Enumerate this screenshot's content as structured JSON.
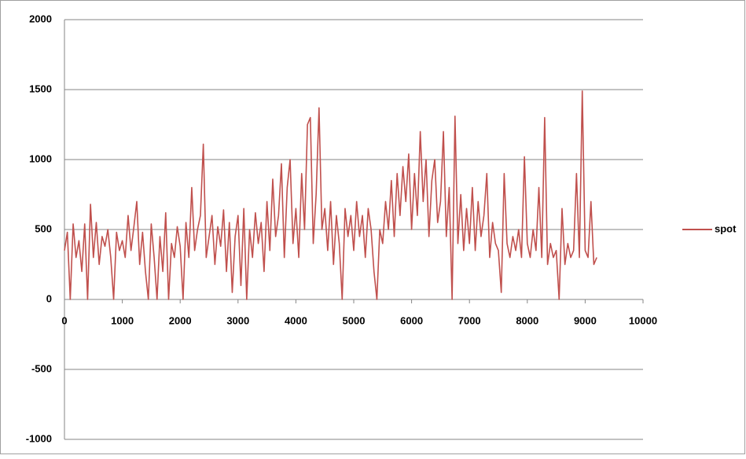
{
  "chart_data": {
    "type": "line",
    "x": [
      0,
      50,
      100,
      150,
      200,
      250,
      300,
      350,
      400,
      450,
      500,
      550,
      600,
      650,
      700,
      750,
      800,
      850,
      900,
      950,
      1000,
      1050,
      1100,
      1150,
      1200,
      1250,
      1300,
      1350,
      1400,
      1450,
      1500,
      1550,
      1600,
      1650,
      1700,
      1750,
      1800,
      1850,
      1900,
      1950,
      2000,
      2050,
      2100,
      2150,
      2200,
      2250,
      2300,
      2350,
      2400,
      2450,
      2500,
      2550,
      2600,
      2650,
      2700,
      2750,
      2800,
      2850,
      2900,
      2950,
      3000,
      3050,
      3100,
      3150,
      3200,
      3250,
      3300,
      3350,
      3400,
      3450,
      3500,
      3550,
      3600,
      3650,
      3700,
      3750,
      3800,
      3850,
      3900,
      3950,
      4000,
      4050,
      4100,
      4150,
      4200,
      4250,
      4300,
      4350,
      4400,
      4450,
      4500,
      4550,
      4600,
      4650,
      4700,
      4750,
      4800,
      4850,
      4900,
      4950,
      5000,
      5050,
      5100,
      5150,
      5200,
      5250,
      5300,
      5350,
      5400,
      5450,
      5500,
      5550,
      5600,
      5650,
      5700,
      5750,
      5800,
      5850,
      5900,
      5950,
      6000,
      6050,
      6100,
      6150,
      6200,
      6250,
      6300,
      6350,
      6400,
      6450,
      6500,
      6550,
      6600,
      6650,
      6700,
      6750,
      6800,
      6850,
      6900,
      6950,
      7000,
      7050,
      7100,
      7150,
      7200,
      7250,
      7300,
      7350,
      7400,
      7450,
      7500,
      7550,
      7600,
      7650,
      7700,
      7750,
      7800,
      7850,
      7900,
      7950,
      8000,
      8050,
      8100,
      8150,
      8200,
      8250,
      8300,
      8350,
      8400,
      8450,
      8500,
      8550,
      8600,
      8650,
      8700,
      8750,
      8800,
      8850,
      8900,
      8950,
      9000,
      9050,
      9100,
      9150,
      9200
    ],
    "series": [
      {
        "name": "spot",
        "color": "#c0504d",
        "values": [
          350,
          480,
          0,
          540,
          300,
          420,
          200,
          540,
          0,
          680,
          300,
          550,
          250,
          450,
          380,
          500,
          300,
          0,
          480,
          350,
          420,
          300,
          600,
          350,
          520,
          700,
          250,
          480,
          200,
          0,
          540,
          300,
          0,
          450,
          200,
          620,
          0,
          400,
          300,
          520,
          380,
          0,
          550,
          300,
          800,
          350,
          500,
          600,
          1110,
          300,
          450,
          600,
          250,
          520,
          380,
          640,
          200,
          550,
          50,
          450,
          600,
          100,
          650,
          0,
          500,
          300,
          620,
          400,
          550,
          200,
          700,
          350,
          860,
          450,
          600,
          970,
          300,
          800,
          1000,
          400,
          650,
          300,
          900,
          500,
          1250,
          1300,
          400,
          750,
          1370,
          500,
          650,
          350,
          700,
          250,
          600,
          400,
          0,
          650,
          450,
          600,
          350,
          700,
          450,
          600,
          300,
          650,
          500,
          200,
          0,
          500,
          400,
          700,
          500,
          850,
          450,
          900,
          600,
          950,
          700,
          1040,
          500,
          900,
          600,
          1200,
          700,
          1000,
          450,
          850,
          1000,
          550,
          700,
          1200,
          450,
          800,
          0,
          1310,
          400,
          750,
          350,
          650,
          400,
          800,
          350,
          700,
          450,
          600,
          900,
          300,
          550,
          400,
          350,
          50,
          900,
          400,
          300,
          450,
          350,
          500,
          300,
          1020,
          400,
          300,
          500,
          350,
          800,
          300,
          1300,
          250,
          400,
          300,
          350,
          0,
          650,
          250,
          400,
          300,
          350,
          900,
          300,
          1490,
          350,
          300,
          700,
          250,
          300
        ]
      }
    ],
    "xlim": [
      0,
      10000
    ],
    "xticks": [
      0,
      1000,
      2000,
      3000,
      4000,
      5000,
      6000,
      7000,
      8000,
      9000,
      10000
    ],
    "ylim": [
      -1000,
      2000
    ],
    "yticks": [
      -1000,
      -500,
      0,
      500,
      1000,
      1500,
      2000
    ],
    "grid": true,
    "legend": "right"
  }
}
